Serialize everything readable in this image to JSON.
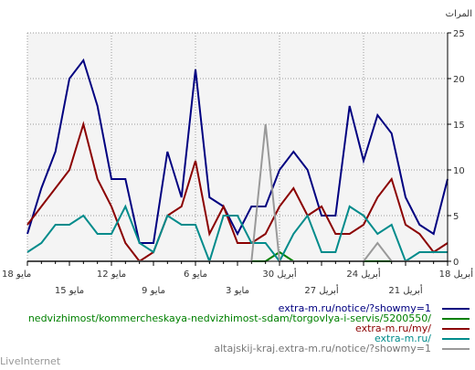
{
  "chart_data": {
    "type": "line",
    "ylabel": "المرات",
    "ylim": [
      0,
      25
    ],
    "yticks": [
      "0",
      "5",
      "10",
      "15",
      "20",
      "25"
    ],
    "grid": true,
    "legend_position": "bottom-right",
    "x_labels_row1": [
      "18 مايو",
      "12 مايو",
      "6 مايو",
      "30 أبريل",
      "24 أبريل",
      "18 أبريل"
    ],
    "x_labels_row2": [
      "15 مايو",
      "9 مايو",
      "3 مايو",
      "27 أبريل",
      "21 أبريل"
    ],
    "series": [
      {
        "name": "extra-m.ru/notice/?showmy=1",
        "color": "#000080",
        "values": [
          3,
          8,
          12,
          20,
          22,
          17,
          9,
          9,
          2,
          2,
          12,
          7,
          21,
          7,
          6,
          3,
          6,
          6,
          10,
          12,
          10,
          5,
          5,
          17,
          11,
          16,
          14,
          7,
          4,
          3,
          9
        ]
      },
      {
        "name": "nedvizhimost/kommercheskaya-nedvizhimost-sdam/torgovlya-i-servis/5200550/",
        "color": "#008000",
        "values": [
          0,
          0,
          0,
          0,
          0,
          0,
          0,
          0,
          0,
          0,
          0,
          0,
          0,
          0,
          0,
          0,
          0,
          0,
          1,
          0,
          0,
          0,
          0,
          0,
          0,
          0,
          0,
          0,
          0,
          0,
          0
        ]
      },
      {
        "name": "extra-m.ru/my/",
        "color": "#8B0000",
        "values": [
          4,
          6,
          8,
          10,
          15,
          9,
          6,
          2,
          0,
          1,
          5,
          6,
          11,
          3,
          6,
          2,
          2,
          3,
          6,
          8,
          5,
          6,
          3,
          3,
          4,
          7,
          9,
          4,
          3,
          1,
          2
        ]
      },
      {
        "name": "extra-m.ru/",
        "color": "#008B8B",
        "values": [
          1,
          2,
          4,
          4,
          5,
          3,
          3,
          6,
          2,
          1,
          5,
          4,
          4,
          0,
          5,
          5,
          2,
          2,
          0,
          3,
          5,
          1,
          1,
          6,
          5,
          3,
          4,
          0,
          1,
          1,
          1
        ]
      },
      {
        "name": "altajskij-kraj.extra-m.ru/notice/?showmy=1",
        "color": "#999999",
        "values": [
          0,
          0,
          0,
          0,
          0,
          0,
          0,
          0,
          0,
          0,
          0,
          0,
          0,
          0,
          0,
          0,
          0,
          15,
          0,
          0,
          0,
          0,
          0,
          0,
          0,
          2,
          0,
          0,
          0,
          0,
          0
        ]
      }
    ]
  },
  "footer": {
    "brand": "LiveInternet"
  }
}
